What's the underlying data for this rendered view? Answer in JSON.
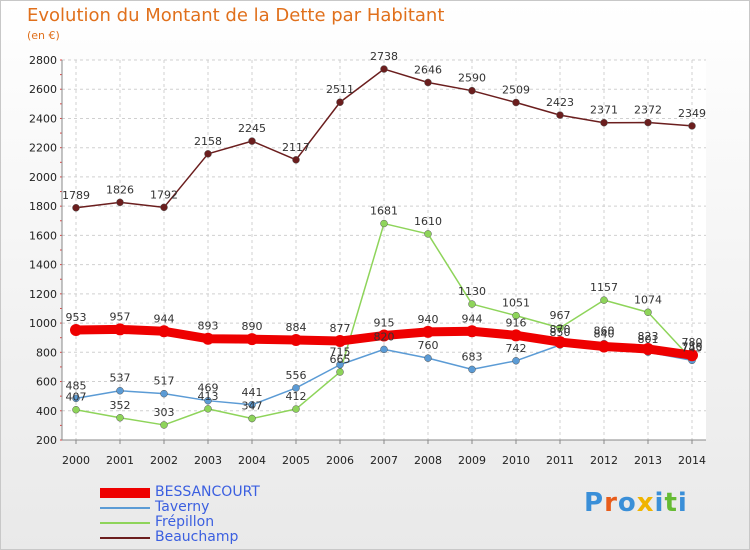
{
  "title": "Evolution du Montant de la Dette par Habitant",
  "subtitle": "(en €)",
  "logo": "Proxiti",
  "chart_data": {
    "type": "line",
    "categories": [
      "2000",
      "2001",
      "2002",
      "2003",
      "2004",
      "2005",
      "2006",
      "2007",
      "2008",
      "2009",
      "2010",
      "2011",
      "2012",
      "2013",
      "2014"
    ],
    "ylim": [
      200,
      2800
    ],
    "yticks": [
      200,
      400,
      600,
      800,
      1000,
      1200,
      1400,
      1600,
      1800,
      2000,
      2200,
      2400,
      2600,
      2800
    ],
    "grid": true,
    "legend_position": "bottom-left",
    "series": [
      {
        "name": "BESSANCOURT",
        "color": "#ee0000",
        "values": [
          953,
          957,
          944,
          893,
          890,
          884,
          877,
          915,
          940,
          944,
          916,
          870,
          840,
          823,
          780
        ]
      },
      {
        "name": "Taverny",
        "color": "#5b9bd5",
        "values": [
          485,
          537,
          517,
          469,
          441,
          556,
          715,
          820,
          760,
          683,
          742,
          850,
          860,
          801,
          745
        ]
      },
      {
        "name": "Frépillon",
        "color": "#8ed45a",
        "values": [
          407,
          352,
          303,
          413,
          347,
          412,
          665,
          1681,
          1610,
          1130,
          1051,
          967,
          1157,
          1074,
          750
        ]
      },
      {
        "name": "Beauchamp",
        "color": "#6b1e1e",
        "values": [
          1789,
          1826,
          1792,
          2158,
          2245,
          2117,
          2511,
          2738,
          2646,
          2590,
          2509,
          2423,
          2371,
          2372,
          2349
        ]
      }
    ]
  }
}
